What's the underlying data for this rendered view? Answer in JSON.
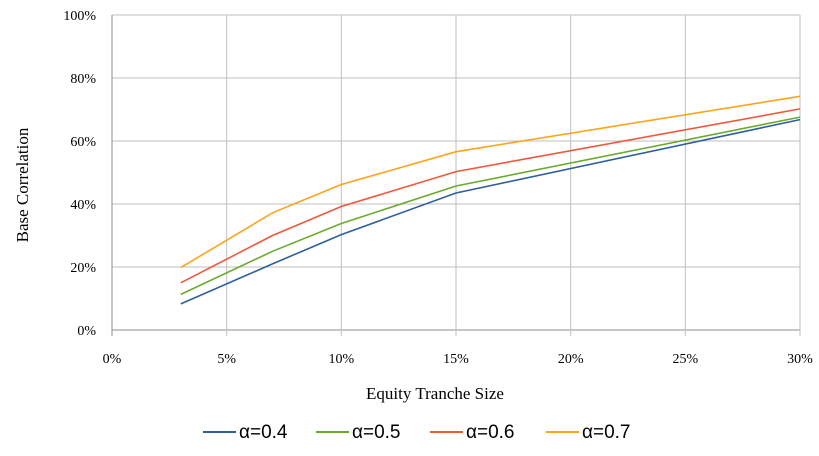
{
  "chart_data": {
    "type": "line",
    "xlabel": "Equity Tranche Size",
    "ylabel": "Base Correlation",
    "xlim": [
      0,
      30
    ],
    "ylim": [
      0,
      100
    ],
    "x_ticks": [
      "0%",
      "5%",
      "10%",
      "15%",
      "20%",
      "25%",
      "30%"
    ],
    "y_ticks": [
      "0%",
      "20%",
      "40%",
      "60%",
      "80%",
      "100%"
    ],
    "grid": true,
    "legend_position": "bottom",
    "x": [
      3,
      7,
      10,
      15,
      30
    ],
    "series": [
      {
        "name": "α=0.4",
        "color": "#2e5f9e",
        "values": [
          8.3,
          21,
          30.3,
          43.5,
          66.8
        ]
      },
      {
        "name": "α=0.5",
        "color": "#6aab2e",
        "values": [
          11.3,
          25,
          33.8,
          45.7,
          67.6
        ]
      },
      {
        "name": "α=0.6",
        "color": "#f0583a",
        "values": [
          15,
          30,
          39.2,
          50.3,
          70.2
        ]
      },
      {
        "name": "α=0.7",
        "color": "#ffa31a",
        "values": [
          19.8,
          37.2,
          46.2,
          56.6,
          74.2
        ]
      }
    ]
  }
}
